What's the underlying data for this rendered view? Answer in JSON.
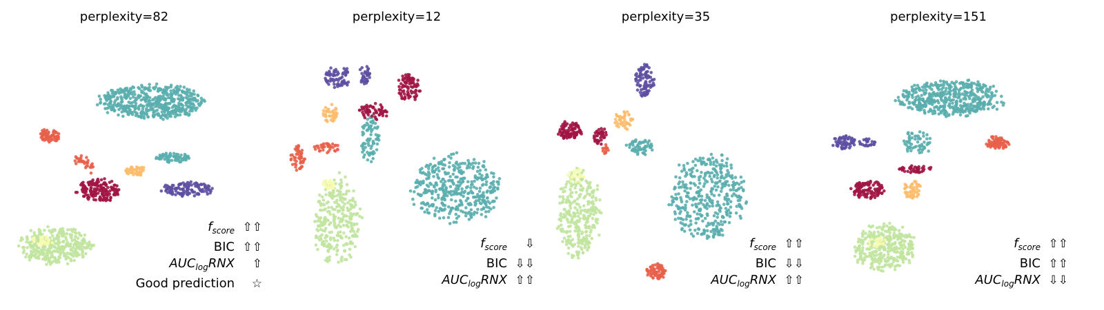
{
  "colors": {
    "teal": "#5aaeae",
    "purple": "#5e4fa2",
    "crimson": "#a11544",
    "coral": "#e8604a",
    "orange": "#fdbd6b",
    "lime": "#c1e49e",
    "pale": "#f6fbae"
  },
  "panels": [
    {
      "title": "perplexity=82",
      "metrics": [
        {
          "label_main": "f",
          "label_sub": "score",
          "italic": true,
          "arrows": "⇧⇧"
        },
        {
          "label_main": "BIC",
          "label_sub": "",
          "italic": false,
          "arrows": "⇧⇧"
        },
        {
          "label_main": "AUC",
          "label_sub": "log",
          "label_tail": "RNX",
          "italic": true,
          "arrows": "⇧"
        },
        {
          "label_main": "Good prediction",
          "label_sub": "",
          "italic": false,
          "arrows": "☆"
        }
      ]
    },
    {
      "title": "perplexity=12",
      "metrics": [
        {
          "label_main": "f",
          "label_sub": "score",
          "italic": true,
          "arrows": "⇩"
        },
        {
          "label_main": "BIC",
          "label_sub": "",
          "italic": false,
          "arrows": "⇩⇩"
        },
        {
          "label_main": "AUC",
          "label_sub": "log",
          "label_tail": "RNX",
          "italic": true,
          "arrows": "⇧⇧"
        }
      ]
    },
    {
      "title": "perplexity=35",
      "metrics": [
        {
          "label_main": "f",
          "label_sub": "score",
          "italic": true,
          "arrows": "⇧⇧"
        },
        {
          "label_main": "BIC",
          "label_sub": "",
          "italic": false,
          "arrows": "⇩⇩"
        },
        {
          "label_main": "AUC",
          "label_sub": "log",
          "label_tail": "RNX",
          "italic": true,
          "arrows": "⇧⇧"
        }
      ]
    },
    {
      "title": "perplexity=151",
      "metrics": [
        {
          "label_main": "f",
          "label_sub": "score",
          "italic": true,
          "arrows": "⇧⇧"
        },
        {
          "label_main": "BIC",
          "label_sub": "",
          "italic": false,
          "arrows": "⇧⇧"
        },
        {
          "label_main": "AUC",
          "label_sub": "log",
          "label_tail": "RNX",
          "italic": true,
          "arrows": "⇩⇩"
        }
      ]
    }
  ],
  "chart_data": {
    "type": "scatter",
    "grid": false,
    "axes_visible": false,
    "panels": [
      {
        "title": "perplexity=82",
        "clusters": [
          {
            "color": "teal",
            "x": 0.59,
            "y": 0.77,
            "sx": 0.22,
            "sy": 0.065,
            "n": 520,
            "shape": "ellipse"
          },
          {
            "color": "teal",
            "x": 0.68,
            "y": 0.555,
            "sx": 0.075,
            "sy": 0.02,
            "n": 70,
            "shape": "ellipse"
          },
          {
            "color": "purple",
            "x": 0.74,
            "y": 0.435,
            "sx": 0.11,
            "sy": 0.028,
            "n": 120,
            "shape": "ellipse"
          },
          {
            "color": "crimson",
            "x": 0.36,
            "y": 0.43,
            "sx": 0.09,
            "sy": 0.045,
            "n": 170,
            "shape": "ellipse"
          },
          {
            "color": "coral",
            "x": 0.15,
            "y": 0.64,
            "sx": 0.045,
            "sy": 0.025,
            "n": 70,
            "shape": "ellipse"
          },
          {
            "color": "coral",
            "x": 0.27,
            "y": 0.55,
            "sx": 0.06,
            "sy": 0.035,
            "n": 35,
            "shape": "line",
            "x2": 0.33,
            "y2": 0.52
          },
          {
            "color": "orange",
            "x": 0.52,
            "y": 0.505,
            "sx": 0.045,
            "sy": 0.018,
            "n": 50,
            "shape": "ellipse"
          },
          {
            "color": "lime",
            "x": 0.18,
            "y": 0.22,
            "sx": 0.155,
            "sy": 0.07,
            "n": 330,
            "shape": "ellipse"
          },
          {
            "color": "pale",
            "x": 0.12,
            "y": 0.24,
            "sx": 0.05,
            "sy": 0.02,
            "n": 25,
            "shape": "ellipse"
          }
        ]
      },
      {
        "title": "perplexity=12",
        "clusters": [
          {
            "color": "teal",
            "x": 0.73,
            "y": 0.42,
            "sx": 0.19,
            "sy": 0.13,
            "n": 420,
            "shape": "ellipse"
          },
          {
            "color": "teal",
            "x": 0.36,
            "y": 0.62,
            "sx": 0.04,
            "sy": 0.09,
            "n": 80,
            "shape": "ellipse"
          },
          {
            "color": "purple",
            "x": 0.22,
            "y": 0.85,
            "sx": 0.06,
            "sy": 0.04,
            "n": 70,
            "shape": "ellipse"
          },
          {
            "color": "purple",
            "x": 0.34,
            "y": 0.86,
            "sx": 0.022,
            "sy": 0.035,
            "n": 35,
            "shape": "ellipse"
          },
          {
            "color": "crimson",
            "x": 0.53,
            "y": 0.81,
            "sx": 0.05,
            "sy": 0.05,
            "n": 90,
            "shape": "ellipse"
          },
          {
            "color": "crimson",
            "x": 0.38,
            "y": 0.72,
            "sx": 0.06,
            "sy": 0.03,
            "n": 60,
            "shape": "ellipse"
          },
          {
            "color": "orange",
            "x": 0.19,
            "y": 0.71,
            "sx": 0.035,
            "sy": 0.035,
            "n": 40,
            "shape": "ellipse"
          },
          {
            "color": "coral",
            "x": 0.05,
            "y": 0.54,
            "sx": 0.03,
            "sy": 0.05,
            "n": 50,
            "shape": "ellipse"
          },
          {
            "color": "coral",
            "x": 0.17,
            "y": 0.58,
            "sx": 0.06,
            "sy": 0.02,
            "n": 35,
            "shape": "ellipse"
          },
          {
            "color": "lime",
            "x": 0.22,
            "y": 0.3,
            "sx": 0.1,
            "sy": 0.17,
            "n": 280,
            "shape": "ellipse"
          },
          {
            "color": "pale",
            "x": 0.18,
            "y": 0.44,
            "sx": 0.03,
            "sy": 0.02,
            "n": 20,
            "shape": "ellipse"
          }
        ]
      },
      {
        "title": "perplexity=35",
        "clusters": [
          {
            "color": "teal",
            "x": 0.65,
            "y": 0.4,
            "sx": 0.16,
            "sy": 0.16,
            "n": 400,
            "shape": "ellipse"
          },
          {
            "color": "teal",
            "x": 0.36,
            "y": 0.59,
            "sx": 0.06,
            "sy": 0.03,
            "n": 60,
            "shape": "ellipse"
          },
          {
            "color": "purple",
            "x": 0.38,
            "y": 0.84,
            "sx": 0.04,
            "sy": 0.06,
            "n": 90,
            "shape": "ellipse"
          },
          {
            "color": "crimson",
            "x": 0.06,
            "y": 0.65,
            "sx": 0.05,
            "sy": 0.035,
            "n": 90,
            "shape": "ellipse"
          },
          {
            "color": "crimson",
            "x": 0.19,
            "y": 0.63,
            "sx": 0.03,
            "sy": 0.03,
            "n": 40,
            "shape": "ellipse"
          },
          {
            "color": "orange",
            "x": 0.29,
            "y": 0.69,
            "sx": 0.04,
            "sy": 0.035,
            "n": 45,
            "shape": "ellipse"
          },
          {
            "color": "coral",
            "x": 0.22,
            "y": 0.58,
            "sx": 0.02,
            "sy": 0.02,
            "n": 12,
            "shape": "ellipse"
          },
          {
            "color": "coral",
            "x": 0.43,
            "y": 0.12,
            "sx": 0.045,
            "sy": 0.03,
            "n": 70,
            "shape": "ellipse"
          },
          {
            "color": "lime",
            "x": 0.1,
            "y": 0.34,
            "sx": 0.09,
            "sy": 0.17,
            "n": 300,
            "shape": "ellipse"
          },
          {
            "color": "pale",
            "x": 0.08,
            "y": 0.48,
            "sx": 0.04,
            "sy": 0.03,
            "n": 20,
            "shape": "ellipse"
          }
        ]
      },
      {
        "title": "perplexity=151",
        "clusters": [
          {
            "color": "teal",
            "x": 0.55,
            "y": 0.77,
            "sx": 0.22,
            "sy": 0.07,
            "n": 480,
            "shape": "ellipse"
          },
          {
            "color": "teal",
            "x": 0.41,
            "y": 0.6,
            "sx": 0.06,
            "sy": 0.045,
            "n": 60,
            "shape": "ellipse"
          },
          {
            "color": "purple",
            "x": 0.1,
            "y": 0.6,
            "sx": 0.05,
            "sy": 0.03,
            "n": 60,
            "shape": "ellipse"
          },
          {
            "color": "purple",
            "x": 0.2,
            "y": 0.6,
            "sx": 0.04,
            "sy": 0.015,
            "n": 25,
            "shape": "ellipse"
          },
          {
            "color": "coral",
            "x": 0.75,
            "y": 0.6,
            "sx": 0.05,
            "sy": 0.025,
            "n": 70,
            "shape": "ellipse"
          },
          {
            "color": "crimson",
            "x": 0.2,
            "y": 0.42,
            "sx": 0.07,
            "sy": 0.035,
            "n": 110,
            "shape": "ellipse"
          },
          {
            "color": "crimson",
            "x": 0.4,
            "y": 0.5,
            "sx": 0.07,
            "sy": 0.015,
            "n": 40,
            "shape": "ellipse"
          },
          {
            "color": "orange",
            "x": 0.39,
            "y": 0.42,
            "sx": 0.04,
            "sy": 0.035,
            "n": 50,
            "shape": "ellipse"
          },
          {
            "color": "lime",
            "x": 0.27,
            "y": 0.2,
            "sx": 0.13,
            "sy": 0.09,
            "n": 320,
            "shape": "ellipse"
          },
          {
            "color": "pale",
            "x": 0.24,
            "y": 0.22,
            "sx": 0.04,
            "sy": 0.02,
            "n": 18,
            "shape": "ellipse"
          }
        ]
      }
    ]
  }
}
